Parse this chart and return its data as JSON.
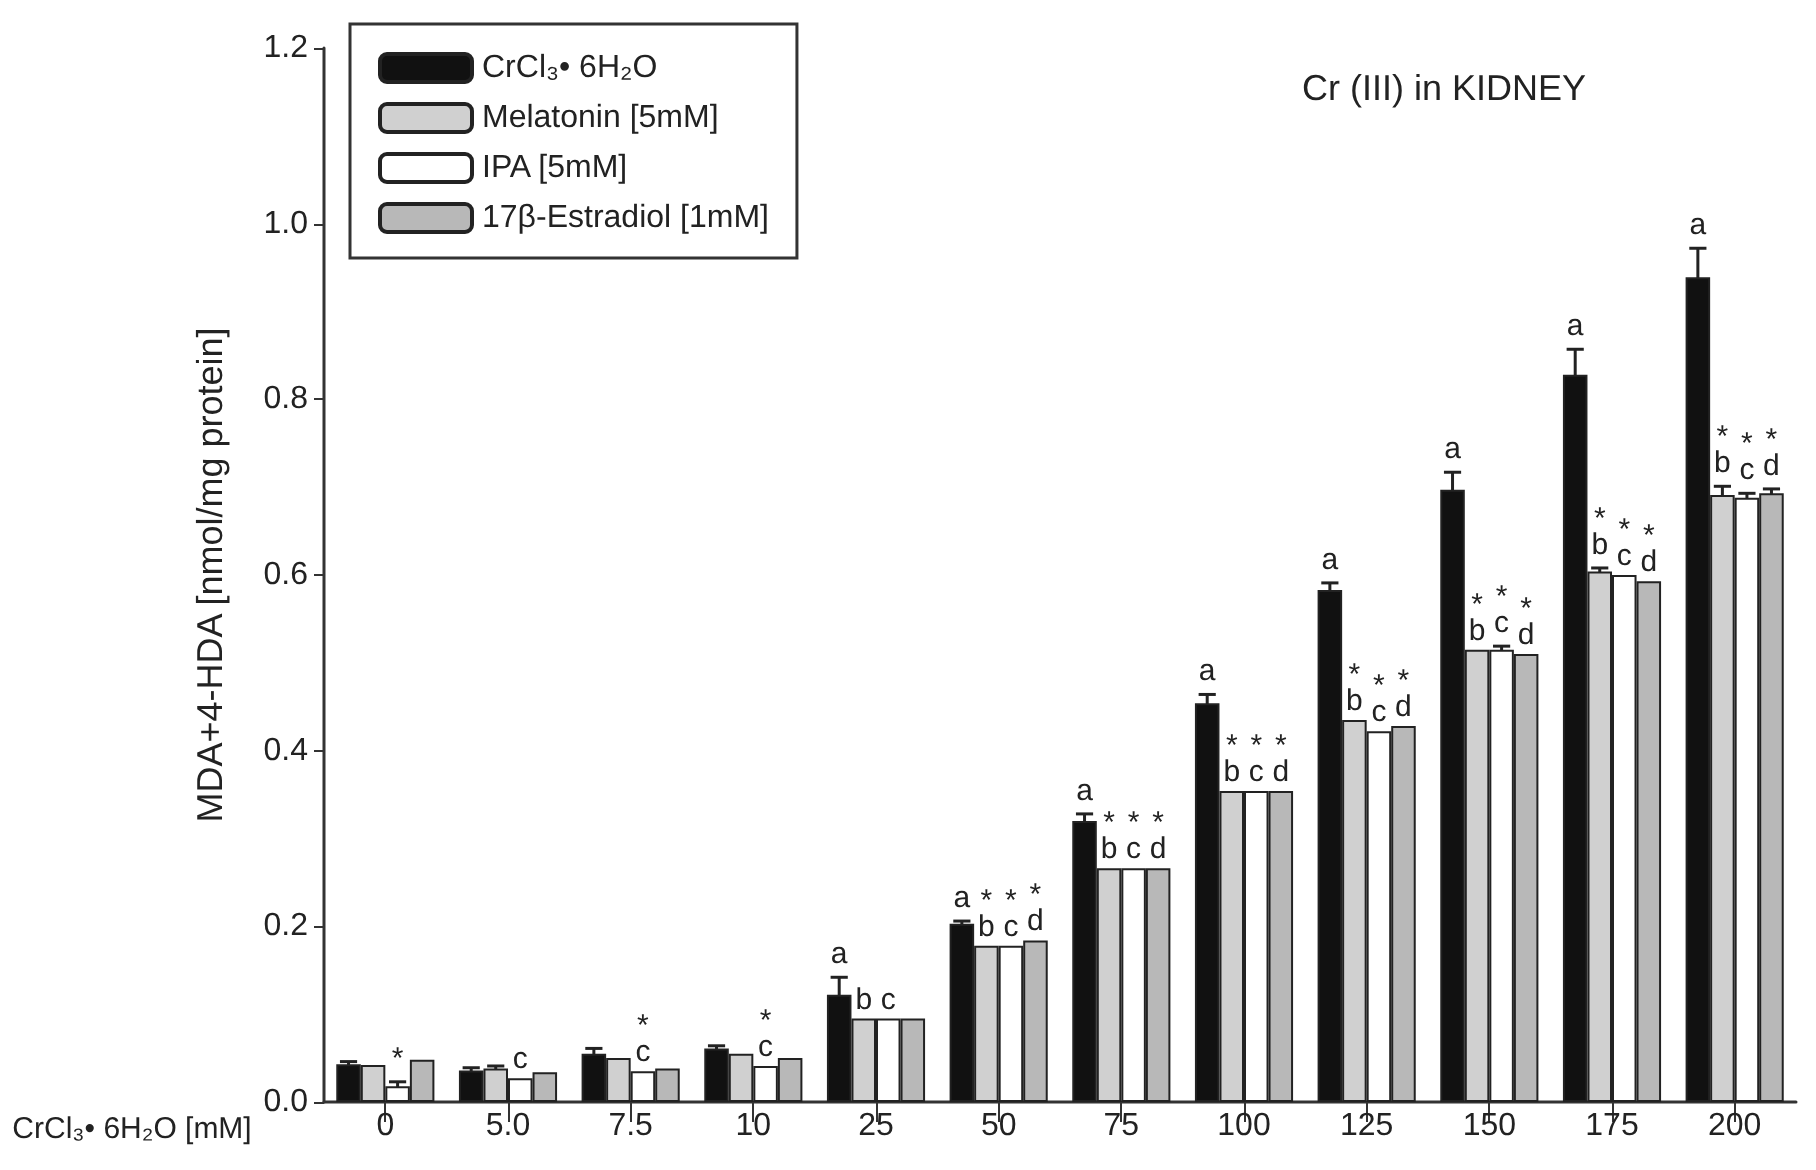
{
  "chart_data": {
    "type": "bar",
    "title": "Cr (III) in KIDNEY",
    "xlabel": "CrCl₃• 6H₂O [mM]",
    "ylabel": "MDA+4-HDA [nmol/mg protein]",
    "categories": [
      "0",
      "5.0",
      "7.5",
      "10",
      "25",
      "50",
      "75",
      "100",
      "125",
      "150",
      "175",
      "200"
    ],
    "series": [
      {
        "name": "CrCl₃• 6H₂O",
        "color": "#111111",
        "values": [
          0.043,
          0.036,
          0.055,
          0.061,
          0.122,
          0.203,
          0.32,
          0.454,
          0.583,
          0.697,
          0.828,
          0.939
        ],
        "errors": [
          0.003,
          0.003,
          0.006,
          0.003,
          0.02,
          0.003,
          0.008,
          0.01,
          0.008,
          0.02,
          0.029,
          0.033
        ],
        "value_labels": [
          null,
          null,
          null,
          null,
          "a",
          "a",
          "a",
          "a",
          "a",
          "a",
          "a",
          "a"
        ]
      },
      {
        "name": "Melatonin [5mM]",
        "color": "#d0d0d0",
        "values": [
          0.042,
          0.038,
          0.05,
          0.055,
          0.095,
          0.178,
          0.266,
          0.354,
          0.435,
          0.515,
          0.604,
          0.691
        ],
        "errors": [
          null,
          0.003,
          null,
          null,
          null,
          null,
          null,
          null,
          null,
          null,
          0.004,
          0.01
        ],
        "value_labels": [
          null,
          null,
          null,
          null,
          "b",
          "*\nb",
          "*\nb",
          "*\nb",
          "*\nb",
          "*\nb",
          "*\nb",
          "*\nb"
        ]
      },
      {
        "name": "IPA [5mM]",
        "color": "#ffffff",
        "values": [
          0.018,
          0.027,
          0.035,
          0.041,
          0.095,
          0.178,
          0.266,
          0.354,
          0.422,
          0.515,
          0.6,
          0.688
        ],
        "errors": [
          0.005,
          null,
          null,
          null,
          null,
          null,
          null,
          null,
          null,
          0.004,
          null,
          0.005
        ],
        "value_labels": [
          "*",
          "c",
          "*\nc",
          "*\nc",
          "c",
          "*\nc",
          "*\nc",
          "*\nc",
          "*\nc",
          "*\nc",
          "*\nc",
          "*\nc"
        ]
      },
      {
        "name": "17β-Estradiol [1mM]",
        "color": "#b8b8b8",
        "values": [
          0.048,
          0.034,
          0.038,
          0.05,
          0.095,
          0.184,
          0.266,
          0.354,
          0.428,
          0.51,
          0.593,
          0.693
        ],
        "errors": [
          null,
          null,
          null,
          null,
          null,
          null,
          null,
          null,
          null,
          null,
          null,
          0.005
        ],
        "value_labels": [
          null,
          null,
          null,
          null,
          null,
          "*\nd",
          "*\nd",
          "*\nd",
          "*\nd",
          "*\nd",
          "*\nd",
          "*\nd"
        ]
      }
    ],
    "ylim": [
      0,
      1.2
    ],
    "yticks": [
      {
        "value": 0,
        "label": "0.0"
      },
      0.2,
      0.4,
      0.6,
      0.8,
      {
        "value": 1,
        "label": "1.0"
      },
      1.2
    ],
    "grid": false,
    "legend": "top left"
  }
}
